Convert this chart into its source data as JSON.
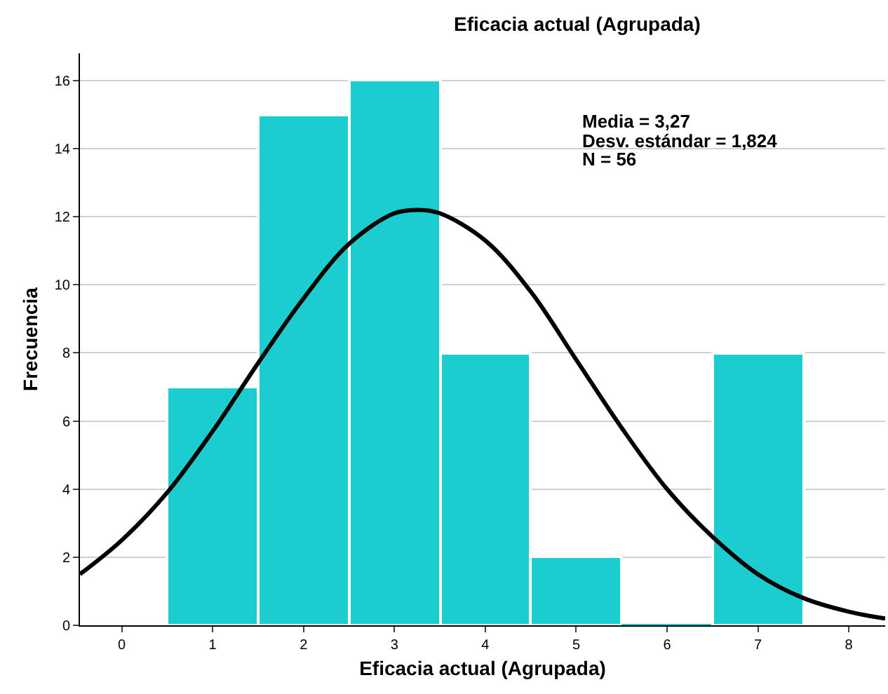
{
  "chart_data": {
    "type": "histogram",
    "title": "Eficacia actual (Agrupada)",
    "xlabel": "Eficacia actual (Agrupada)",
    "ylabel": "Frecuencia",
    "annotations": [
      "Media = 3,27",
      "Desv. estándar = 1,824",
      "N = 56"
    ],
    "series": [
      {
        "bins": [
          0.5,
          1.5,
          2.5,
          3.5,
          4.5,
          5.5,
          6.5,
          7.5
        ],
        "values": [
          7,
          15,
          16,
          8,
          2,
          0,
          8
        ],
        "color": "#1ccdd0"
      },
      {
        "type": "line",
        "color": "#000000",
        "x": [
          -0.46,
          0,
          0.5,
          1,
          1.5,
          2,
          2.5,
          3,
          3.27,
          3.5,
          4,
          4.5,
          5,
          5.5,
          6,
          6.5,
          7,
          7.5,
          8,
          8.4
        ],
        "values": [
          1.5,
          2.5,
          3.9,
          5.7,
          7.7,
          9.6,
          11.2,
          12.1,
          12.2,
          12.1,
          11.3,
          9.8,
          7.8,
          5.8,
          4.0,
          2.6,
          1.5,
          0.8,
          0.4,
          0.2
        ]
      }
    ],
    "xlim": [
      -0.46,
      8.4
    ],
    "xticks": [
      0,
      1,
      2,
      3,
      4,
      5,
      6,
      7,
      8
    ],
    "ylim": [
      0,
      16.8
    ],
    "yticks": [
      0,
      2,
      4,
      6,
      8,
      10,
      12,
      14,
      16
    ],
    "grid": "y",
    "marker": "none",
    "line_style": "solid"
  }
}
